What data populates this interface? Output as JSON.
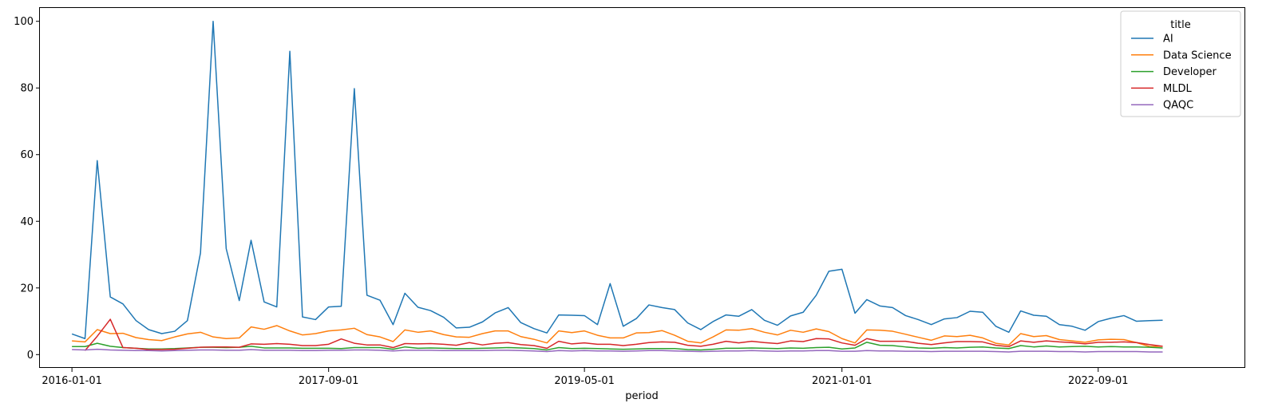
{
  "chart_data": {
    "type": "line",
    "xlabel": "period",
    "ylabel": "",
    "ylim": [
      -4,
      104
    ],
    "xlim": [
      "2015-10-17",
      "2023-08-16"
    ],
    "x_ticks": [
      {
        "date": "2016-01-01",
        "label": "2016-01-01"
      },
      {
        "date": "2017-09-01",
        "label": "2017-09-01"
      },
      {
        "date": "2019-05-01",
        "label": "2019-05-01"
      },
      {
        "date": "2021-01-01",
        "label": "2021-01-01"
      },
      {
        "date": "2022-09-01",
        "label": "2022-09-01"
      }
    ],
    "y_ticks": [
      0,
      20,
      40,
      60,
      80,
      100
    ],
    "grid": false,
    "legend": {
      "title": "title",
      "placement": "top-right"
    },
    "x": [
      "2016-01-01",
      "2016-02-01",
      "2016-03-01",
      "2016-04-01",
      "2016-05-01",
      "2016-06-01",
      "2016-07-01",
      "2016-08-01",
      "2016-09-01",
      "2016-10-01",
      "2016-11-01",
      "2016-12-01",
      "2017-01-01",
      "2017-02-01",
      "2017-03-01",
      "2017-04-01",
      "2017-05-01",
      "2017-06-01",
      "2017-07-01",
      "2017-08-01",
      "2017-09-01",
      "2017-10-01",
      "2017-11-01",
      "2017-12-01",
      "2018-01-01",
      "2018-02-01",
      "2018-03-01",
      "2018-04-01",
      "2018-05-01",
      "2018-06-01",
      "2018-07-01",
      "2018-08-01",
      "2018-09-01",
      "2018-10-01",
      "2018-11-01",
      "2018-12-01",
      "2019-01-01",
      "2019-02-01",
      "2019-03-01",
      "2019-04-01",
      "2019-05-01",
      "2019-06-01",
      "2019-07-01",
      "2019-08-01",
      "2019-09-01",
      "2019-10-01",
      "2019-11-01",
      "2019-12-01",
      "2020-01-01",
      "2020-02-01",
      "2020-03-01",
      "2020-04-01",
      "2020-05-01",
      "2020-06-01",
      "2020-07-01",
      "2020-08-01",
      "2020-09-01",
      "2020-10-01",
      "2020-11-01",
      "2020-12-01",
      "2021-01-01",
      "2021-02-01",
      "2021-03-01",
      "2021-04-01",
      "2021-05-01",
      "2021-06-01",
      "2021-07-01",
      "2021-08-01",
      "2021-09-01",
      "2021-10-01",
      "2021-11-01",
      "2021-12-01",
      "2022-01-01",
      "2022-02-01",
      "2022-03-01",
      "2022-04-01",
      "2022-05-01",
      "2022-06-01",
      "2022-07-01",
      "2022-08-01",
      "2022-09-01",
      "2022-10-01",
      "2022-11-01",
      "2022-12-01",
      "2023-01-01",
      "2023-02-01"
    ],
    "series": [
      {
        "name": "AI",
        "color": "#1f77b4",
        "values": [
          6.2,
          4.8,
          58.2,
          17.3,
          15.2,
          10.2,
          7.5,
          6.3,
          7.0,
          10.2,
          30.5,
          100.0,
          31.8,
          16.2,
          34.3,
          15.8,
          14.3,
          91.0,
          11.3,
          10.5,
          14.3,
          14.5,
          79.8,
          17.8,
          16.3,
          9.0,
          18.4,
          14.2,
          13.2,
          11.2,
          8.0,
          8.2,
          9.8,
          12.5,
          14.1,
          9.6,
          7.8,
          6.5,
          11.9,
          11.8,
          11.7,
          9.0,
          21.3,
          8.5,
          10.8,
          14.9,
          14.1,
          13.5,
          9.5,
          7.5,
          9.9,
          11.9,
          11.5,
          13.5,
          10.3,
          8.8,
          11.6,
          12.7,
          17.8,
          25.0,
          25.6,
          12.4,
          16.5,
          14.6,
          14.1,
          11.7,
          10.5,
          9.0,
          10.7,
          11.1,
          13.0,
          12.7,
          8.5,
          6.7,
          13.1,
          11.8,
          11.5,
          9.0,
          8.5,
          7.3,
          9.9,
          10.9,
          11.7,
          10.0,
          10.2,
          10.3
        ]
      },
      {
        "name": "Data Science",
        "color": "#ff7f0e",
        "values": [
          4.1,
          3.8,
          7.5,
          6.3,
          6.4,
          5.1,
          4.5,
          4.2,
          5.3,
          6.2,
          6.7,
          5.3,
          4.8,
          5.0,
          8.3,
          7.6,
          8.7,
          7.1,
          5.9,
          6.3,
          7.1,
          7.4,
          7.9,
          6.0,
          5.3,
          3.9,
          7.4,
          6.7,
          7.1,
          6.0,
          5.3,
          5.2,
          6.3,
          7.1,
          7.1,
          5.4,
          4.6,
          3.5,
          7.1,
          6.6,
          7.1,
          5.8,
          5.0,
          5.0,
          6.5,
          6.6,
          7.2,
          5.8,
          4.0,
          3.5,
          5.3,
          7.4,
          7.3,
          7.8,
          6.7,
          5.9,
          7.3,
          6.7,
          7.7,
          6.9,
          4.8,
          3.5,
          7.4,
          7.3,
          7.0,
          6.1,
          5.2,
          4.3,
          5.6,
          5.4,
          5.8,
          5.0,
          3.4,
          2.9,
          6.3,
          5.4,
          5.7,
          4.5,
          4.1,
          3.7,
          4.4,
          4.6,
          4.5,
          3.6,
          2.4,
          2.5
        ]
      },
      {
        "name": "Developer",
        "color": "#2ca02c",
        "values": [
          2.4,
          2.4,
          3.4,
          2.5,
          2.1,
          1.9,
          1.7,
          1.7,
          1.8,
          2.0,
          2.2,
          2.2,
          2.1,
          2.2,
          2.5,
          2.0,
          2.0,
          2.0,
          1.9,
          1.9,
          1.9,
          1.8,
          2.1,
          2.1,
          2.1,
          1.6,
          2.3,
          1.9,
          2.0,
          1.9,
          1.8,
          1.8,
          1.9,
          2.0,
          2.1,
          2.0,
          1.8,
          1.4,
          2.1,
          1.8,
          1.9,
          1.8,
          1.7,
          1.6,
          1.7,
          1.8,
          1.8,
          1.8,
          1.5,
          1.4,
          1.6,
          1.9,
          1.9,
          2.0,
          1.9,
          1.8,
          2.0,
          1.9,
          2.1,
          2.2,
          1.7,
          2.0,
          3.7,
          2.8,
          2.7,
          2.3,
          2.0,
          1.9,
          2.1,
          2.0,
          2.2,
          2.3,
          2.0,
          1.8,
          2.7,
          2.3,
          2.6,
          2.3,
          2.4,
          2.5,
          2.3,
          2.4,
          2.3,
          2.3,
          2.2,
          2.0
        ]
      },
      {
        "name": "MLDL",
        "color": "#d62728",
        "values": [
          null,
          1.2,
          5.5,
          10.6,
          2.1,
          1.9,
          1.5,
          1.5,
          1.6,
          1.9,
          2.2,
          2.3,
          2.3,
          2.2,
          3.2,
          3.1,
          3.3,
          3.1,
          2.7,
          2.7,
          3.1,
          4.7,
          3.4,
          2.9,
          2.9,
          2.1,
          3.3,
          3.2,
          3.3,
          3.1,
          2.8,
          3.6,
          2.9,
          3.4,
          3.6,
          3.0,
          2.7,
          1.9,
          4.0,
          3.2,
          3.5,
          3.1,
          3.1,
          2.7,
          3.1,
          3.6,
          3.8,
          3.7,
          2.8,
          2.5,
          3.1,
          4.0,
          3.5,
          4.0,
          3.6,
          3.3,
          4.1,
          3.9,
          4.8,
          4.7,
          3.5,
          2.8,
          4.8,
          4.0,
          4.0,
          4.0,
          3.4,
          3.0,
          3.5,
          3.9,
          3.9,
          3.8,
          2.8,
          2.4,
          4.1,
          3.7,
          4.1,
          3.8,
          3.6,
          3.2,
          3.7,
          3.7,
          3.8,
          3.6,
          3.0,
          2.5
        ]
      },
      {
        "name": "QAQC",
        "color": "#9467bd",
        "values": [
          1.5,
          1.4,
          1.6,
          1.4,
          1.3,
          1.2,
          1.2,
          1.1,
          1.2,
          1.3,
          1.4,
          1.4,
          1.3,
          1.3,
          1.5,
          1.3,
          1.3,
          1.3,
          1.2,
          1.2,
          1.3,
          1.3,
          1.4,
          1.4,
          1.3,
          1.1,
          1.3,
          1.3,
          1.3,
          1.2,
          1.2,
          1.2,
          1.2,
          1.3,
          1.3,
          1.2,
          1.1,
          0.9,
          1.2,
          1.1,
          1.2,
          1.1,
          1.1,
          1.0,
          1.1,
          1.2,
          1.2,
          1.1,
          1.0,
          0.9,
          1.0,
          1.1,
          1.1,
          1.2,
          1.1,
          1.0,
          1.1,
          1.1,
          1.2,
          1.2,
          1.0,
          1.0,
          1.2,
          1.1,
          1.1,
          1.0,
          1.0,
          0.9,
          1.0,
          1.0,
          1.0,
          1.0,
          0.9,
          0.8,
          1.0,
          1.0,
          1.0,
          0.9,
          0.9,
          0.8,
          0.9,
          0.9,
          0.9,
          0.9,
          0.8,
          0.8
        ]
      }
    ]
  }
}
